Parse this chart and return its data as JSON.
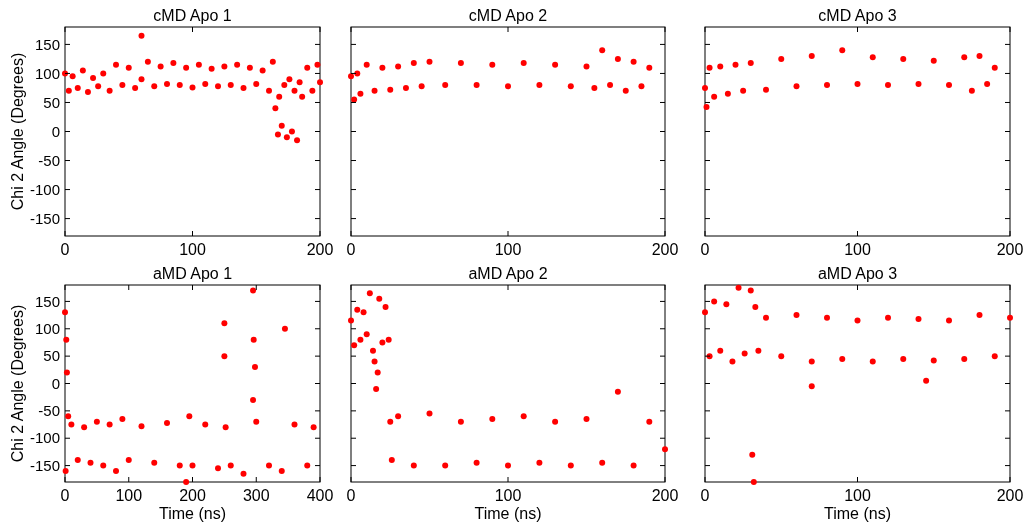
{
  "chart_data": [
    {
      "type": "scatter",
      "title": "cMD Apo 1",
      "ylabel": "Chi 2 Angle (Degrees)",
      "xlim": [
        0,
        200
      ],
      "xticks": [
        0,
        100,
        200
      ],
      "ylim": [
        -180,
        180
      ],
      "yticks": [
        -150,
        -100,
        -50,
        0,
        50,
        100,
        150
      ],
      "marker": "circle",
      "x": [
        0,
        3,
        6,
        10,
        14,
        18,
        22,
        26,
        30,
        35,
        40,
        45,
        50,
        55,
        60,
        60,
        65,
        70,
        75,
        80,
        85,
        90,
        95,
        100,
        105,
        110,
        115,
        120,
        125,
        130,
        135,
        140,
        145,
        150,
        155,
        160,
        163,
        165,
        167,
        168,
        170,
        172,
        174,
        176,
        178,
        180,
        182,
        184,
        186,
        190,
        194,
        198,
        200
      ],
      "series": [
        {
          "color": "#ff0000",
          "values": [
            100,
            70,
            95,
            75,
            105,
            68,
            92,
            78,
            100,
            70,
            115,
            80,
            110,
            75,
            165,
            90,
            120,
            78,
            112,
            82,
            118,
            80,
            110,
            76,
            115,
            82,
            108,
            78,
            112,
            80,
            115,
            75,
            110,
            82,
            105,
            70,
            120,
            40,
            -5,
            60,
            10,
            80,
            -10,
            90,
            0,
            70,
            -15,
            85,
            60,
            110,
            70,
            115,
            85
          ]
        }
      ]
    },
    {
      "type": "scatter",
      "title": "cMD Apo 2",
      "xlim": [
        0,
        200
      ],
      "xticks": [
        0,
        100,
        200
      ],
      "ylim": [
        -180,
        180
      ],
      "yticks": [
        -150,
        -100,
        -50,
        0,
        50,
        100,
        150
      ],
      "tick_labels": "x",
      "marker": "circle",
      "x": [
        0,
        2,
        4,
        6,
        10,
        15,
        20,
        25,
        30,
        35,
        40,
        45,
        50,
        60,
        70,
        80,
        90,
        100,
        110,
        120,
        130,
        140,
        150,
        155,
        160,
        165,
        170,
        175,
        180,
        185,
        190
      ],
      "series": [
        {
          "color": "#ff0000",
          "values": [
            95,
            55,
            100,
            65,
            115,
            70,
            110,
            72,
            112,
            75,
            118,
            78,
            120,
            80,
            118,
            80,
            115,
            78,
            118,
            80,
            115,
            78,
            112,
            75,
            140,
            80,
            125,
            70,
            120,
            78,
            110
          ]
        }
      ]
    },
    {
      "type": "scatter",
      "title": "cMD Apo 3",
      "xlim": [
        0,
        200
      ],
      "xticks": [
        0,
        100,
        200
      ],
      "ylim": [
        -180,
        180
      ],
      "yticks": [
        -150,
        -100,
        -50,
        0,
        50,
        100,
        150
      ],
      "tick_labels": "x",
      "marker": "circle",
      "x": [
        0,
        1,
        3,
        6,
        10,
        15,
        20,
        25,
        30,
        40,
        50,
        60,
        70,
        80,
        90,
        100,
        110,
        120,
        130,
        140,
        150,
        160,
        170,
        175,
        180,
        185,
        190
      ],
      "series": [
        {
          "color": "#ff0000",
          "values": [
            75,
            42,
            110,
            60,
            112,
            65,
            115,
            70,
            118,
            72,
            125,
            78,
            130,
            80,
            140,
            82,
            128,
            80,
            125,
            82,
            122,
            80,
            128,
            70,
            130,
            82,
            110
          ]
        }
      ]
    },
    {
      "type": "scatter",
      "title": "aMD Apo 1",
      "xlabel": "Time (ns)",
      "ylabel": "Chi 2 Angle (Degrees)",
      "xlim": [
        0,
        400
      ],
      "xticks": [
        0,
        100,
        200,
        300,
        400
      ],
      "ylim": [
        -180,
        180
      ],
      "yticks": [
        -150,
        -100,
        -50,
        0,
        50,
        100,
        150
      ],
      "marker": "circle",
      "x": [
        0,
        1,
        2,
        3,
        5,
        10,
        20,
        30,
        40,
        50,
        60,
        70,
        80,
        90,
        100,
        120,
        140,
        160,
        180,
        190,
        195,
        200,
        220,
        240,
        250,
        250,
        252,
        260,
        280,
        295,
        295,
        296,
        298,
        300,
        320,
        340,
        345,
        360,
        380,
        390
      ],
      "series": [
        {
          "color": "#ff0000",
          "values": [
            130,
            -160,
            80,
            20,
            -60,
            -75,
            -140,
            -80,
            -145,
            -70,
            -150,
            -75,
            -160,
            -65,
            -140,
            -78,
            -145,
            -72,
            -150,
            -180,
            -60,
            -150,
            -75,
            -155,
            110,
            50,
            -80,
            -150,
            -165,
            170,
            -30,
            80,
            30,
            -70,
            -150,
            -160,
            100,
            -75,
            -150,
            -80
          ]
        }
      ]
    },
    {
      "type": "scatter",
      "title": "aMD Apo 2",
      "xlabel": "Time (ns)",
      "xlim": [
        0,
        200
      ],
      "xticks": [
        0,
        100,
        200
      ],
      "ylim": [
        -180,
        180
      ],
      "yticks": [
        -150,
        -100,
        -50,
        0,
        50,
        100,
        150
      ],
      "tick_labels": "x",
      "marker": "circle",
      "x": [
        0,
        2,
        4,
        6,
        8,
        10,
        12,
        14,
        15,
        16,
        17,
        18,
        20,
        22,
        24,
        25,
        26,
        30,
        40,
        50,
        60,
        70,
        80,
        90,
        100,
        110,
        120,
        130,
        140,
        150,
        160,
        170,
        180,
        190,
        200
      ],
      "series": [
        {
          "color": "#ff0000",
          "values": [
            115,
            70,
            135,
            80,
            130,
            90,
            165,
            60,
            40,
            -10,
            20,
            155,
            75,
            140,
            80,
            -70,
            -140,
            -60,
            -150,
            -55,
            -150,
            -70,
            -145,
            -65,
            -150,
            -60,
            -145,
            -70,
            -150,
            -65,
            -145,
            -15,
            -150,
            -70,
            -120
          ]
        }
      ]
    },
    {
      "type": "scatter",
      "title": "aMD Apo 3",
      "xlabel": "Time (ns)",
      "xlim": [
        0,
        200
      ],
      "xticks": [
        0,
        100,
        200
      ],
      "ylim": [
        -180,
        180
      ],
      "yticks": [
        -150,
        -100,
        -50,
        0,
        50,
        100,
        150
      ],
      "tick_labels": "x",
      "marker": "circle",
      "x": [
        0,
        3,
        6,
        10,
        14,
        18,
        22,
        26,
        30,
        31,
        32,
        33,
        35,
        40,
        50,
        60,
        70,
        70,
        80,
        90,
        100,
        110,
        120,
        130,
        140,
        145,
        150,
        160,
        170,
        180,
        190,
        200
      ],
      "series": [
        {
          "color": "#ff0000",
          "values": [
            130,
            50,
            150,
            60,
            145,
            40,
            175,
            55,
            170,
            -130,
            -180,
            140,
            60,
            120,
            50,
            125,
            40,
            -5,
            120,
            45,
            115,
            40,
            120,
            45,
            118,
            5,
            42,
            115,
            45,
            125,
            50,
            120
          ]
        }
      ]
    }
  ]
}
